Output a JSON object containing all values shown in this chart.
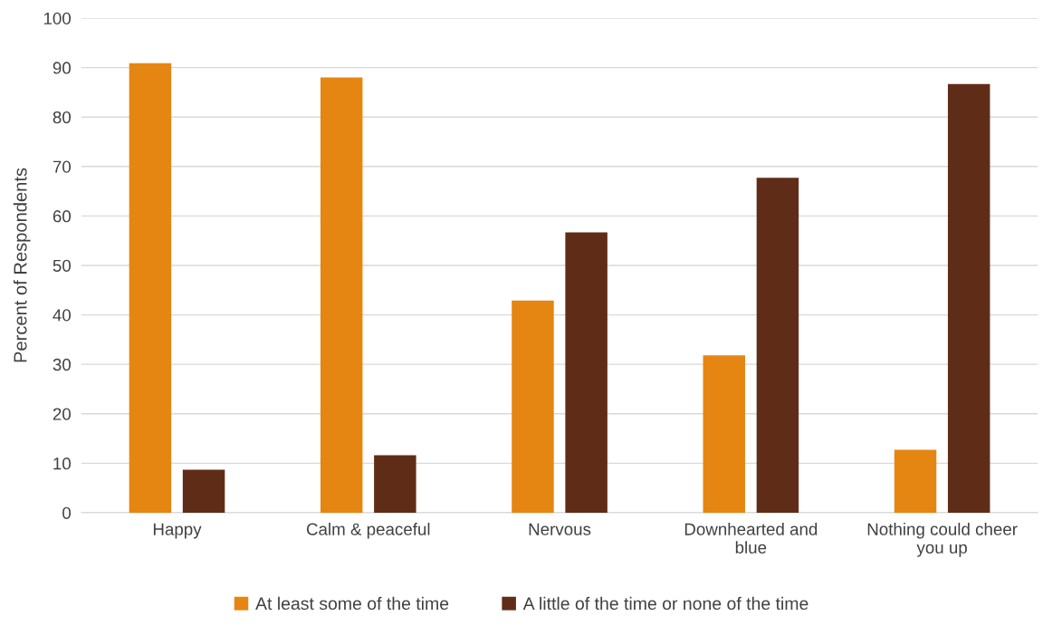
{
  "chart_data": {
    "type": "bar",
    "ylabel": "Percent of Respondents",
    "categories": [
      "Happy",
      "Calm & peaceful",
      "Nervous",
      "Downhearted and\nblue",
      "Nothing could cheer\nyou up"
    ],
    "series": [
      {
        "name": "At least some of the time",
        "color": "#e58612",
        "values": [
          90.9,
          88,
          42.9,
          31.8,
          12.7
        ]
      },
      {
        "name": "A little of the time or none of the time",
        "color": "#5f2d17",
        "values": [
          8.7,
          11.6,
          56.7,
          67.7,
          86.7
        ]
      }
    ],
    "ylim": [
      0,
      100
    ],
    "yticks": [
      0,
      10,
      20,
      30,
      40,
      50,
      60,
      70,
      80,
      90,
      100
    ],
    "grid": "y",
    "legend": "bottom"
  }
}
